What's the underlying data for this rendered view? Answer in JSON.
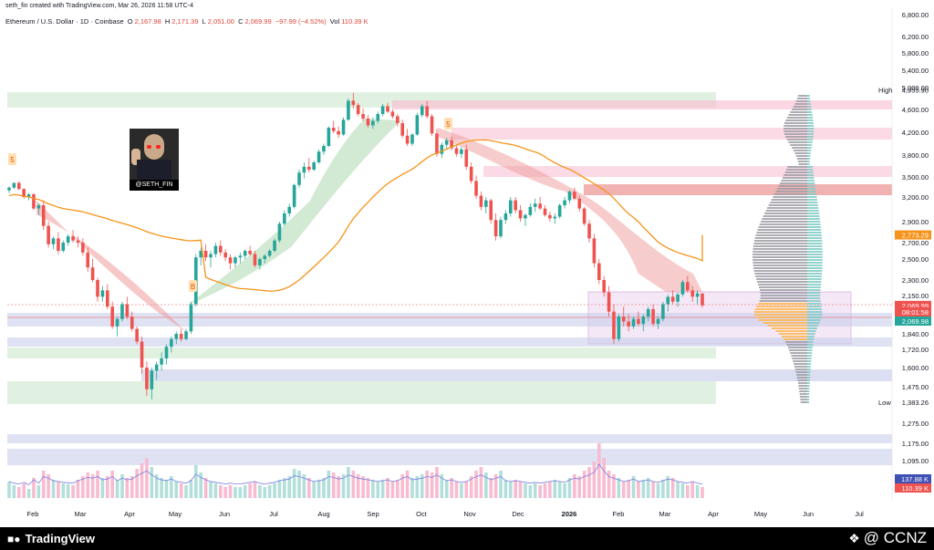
{
  "attribution": "seth_fin created with TradingView.com, Mar 26, 2026 11:58 UTC-4",
  "header": {
    "symbol": "Ethereum / U.S. Dollar · 1D · Coinbase",
    "o_label": "O",
    "o_value": "2,167.98",
    "h_label": "H",
    "h_value": "2,171.39",
    "l_label": "L",
    "l_value": "2,051.00",
    "c_label": "C",
    "c_value": "2,069.99",
    "change": "−97.99 (−4.52%)",
    "vol_label": "Vol",
    "vol_value": "110.39 K"
  },
  "avatar_caption": "@SETH_FIN",
  "footer": {
    "logo_text": "TradingView",
    "watermark": "@ CCNZ"
  },
  "colors": {
    "up": "#26a69a",
    "down": "#ef5350",
    "ma": "#f7931a",
    "up_volume": "#26a69a",
    "volume_line": "#7b7fe0"
  },
  "icons": {
    "tradingview": "tv-logo-icon",
    "ccnz": "ccnz-logo-icon"
  },
  "chart_data": {
    "type": "candlestick",
    "x_axis": [
      "Feb",
      "Mar",
      "Apr",
      "May",
      "Jun",
      "Jul",
      "Aug",
      "Sep",
      "Oct",
      "Nov",
      "Dec",
      "2026",
      "Feb",
      "Mar",
      "Apr",
      "May",
      "Jun",
      "Jul"
    ],
    "y_ticks": [
      "6,800.00",
      "6,200.00",
      "5,800.00",
      "5,400.00",
      "5,000.00",
      "4,600.00",
      "4,200.00",
      "3,800.00",
      "3,500.00",
      "3,200.00",
      "2,900.00",
      "2,700.00",
      "2,500.00",
      "2,300.00",
      "2,150.00",
      "1,840.00",
      "1,720.00",
      "1,600.00",
      "1,475.00",
      "1,275.00",
      "1,175.00",
      "1,095.00"
    ],
    "y_tick_values": [
      6800,
      6200,
      5800,
      5400,
      5000,
      4600,
      4200,
      3800,
      3500,
      3200,
      2900,
      2700,
      2500,
      2300,
      2150,
      1840,
      1720,
      1600,
      1475,
      1275,
      1175,
      1095
    ],
    "price_labels": [
      {
        "text": "High",
        "value": "4,955.90",
        "price": 4955.9
      },
      {
        "text": "",
        "value": "2,773.29",
        "price": 2773.29,
        "kind": "ma"
      },
      {
        "text": "",
        "value": "2,069.99",
        "price": 2069.99,
        "kind": "last"
      },
      {
        "text": "",
        "value": "08:01:58",
        "price": 2020,
        "kind": "countdown"
      },
      {
        "text": "",
        "value": "2,069.98",
        "price": 1960,
        "kind": "green"
      },
      {
        "text": "Low",
        "value": "1,383.26",
        "price": 1383.26
      }
    ],
    "volume_labels": [
      "137.88 K",
      "110.39 K"
    ],
    "annotations": [
      "5",
      "B",
      "5"
    ],
    "candles": [
      [
        3300,
        3360,
        3260,
        3340
      ],
      [
        3340,
        3420,
        3320,
        3410
      ],
      [
        3410,
        3440,
        3300,
        3320
      ],
      [
        3320,
        3330,
        3180,
        3200
      ],
      [
        3200,
        3260,
        3160,
        3240
      ],
      [
        3240,
        3260,
        3040,
        3060
      ],
      [
        3060,
        3120,
        2980,
        3100
      ],
      [
        3100,
        3160,
        2820,
        2860
      ],
      [
        2860,
        2900,
        2640,
        2680
      ],
      [
        2680,
        2760,
        2620,
        2740
      ],
      [
        2740,
        2800,
        2560,
        2600
      ],
      [
        2600,
        2720,
        2580,
        2700
      ],
      [
        2700,
        2780,
        2660,
        2760
      ],
      [
        2760,
        2820,
        2700,
        2720
      ],
      [
        2720,
        2760,
        2640,
        2700
      ],
      [
        2700,
        2740,
        2540,
        2580
      ],
      [
        2580,
        2640,
        2380,
        2420
      ],
      [
        2420,
        2500,
        2280,
        2300
      ],
      [
        2300,
        2320,
        2100,
        2140
      ],
      [
        2140,
        2240,
        2100,
        2200
      ],
      [
        2200,
        2260,
        2040,
        2060
      ],
      [
        2060,
        2100,
        1880,
        1900
      ],
      [
        1900,
        1980,
        1820,
        1960
      ],
      [
        1960,
        2100,
        1940,
        2080
      ],
      [
        2080,
        2140,
        1960,
        1980
      ],
      [
        1980,
        2020,
        1860,
        1880
      ],
      [
        1880,
        1900,
        1760,
        1780
      ],
      [
        1780,
        1820,
        1560,
        1600
      ],
      [
        1600,
        1640,
        1420,
        1460
      ],
      [
        1460,
        1600,
        1400,
        1580
      ],
      [
        1580,
        1640,
        1520,
        1620
      ],
      [
        1620,
        1700,
        1580,
        1660
      ],
      [
        1660,
        1760,
        1620,
        1740
      ],
      [
        1740,
        1820,
        1700,
        1800
      ],
      [
        1800,
        1860,
        1760,
        1840
      ],
      [
        1840,
        1880,
        1780,
        1800
      ],
      [
        1800,
        1880,
        1790,
        1860
      ],
      [
        1860,
        2100,
        1840,
        2080
      ],
      [
        2080,
        2560,
        2060,
        2520
      ],
      [
        2520,
        2640,
        2440,
        2600
      ],
      [
        2600,
        2680,
        2480,
        2520
      ],
      [
        2520,
        2600,
        2420,
        2560
      ],
      [
        2560,
        2700,
        2520,
        2660
      ],
      [
        2660,
        2720,
        2540,
        2580
      ],
      [
        2580,
        2620,
        2480,
        2520
      ],
      [
        2520,
        2560,
        2400,
        2460
      ],
      [
        2460,
        2540,
        2420,
        2520
      ],
      [
        2520,
        2580,
        2460,
        2540
      ],
      [
        2540,
        2620,
        2500,
        2600
      ],
      [
        2600,
        2660,
        2540,
        2560
      ],
      [
        2560,
        2600,
        2420,
        2440
      ],
      [
        2440,
        2520,
        2400,
        2500
      ],
      [
        2500,
        2560,
        2460,
        2540
      ],
      [
        2540,
        2620,
        2520,
        2600
      ],
      [
        2600,
        2740,
        2580,
        2720
      ],
      [
        2720,
        2900,
        2700,
        2880
      ],
      [
        2880,
        3040,
        2860,
        3000
      ],
      [
        3000,
        3120,
        2960,
        3080
      ],
      [
        3080,
        3400,
        3060,
        3380
      ],
      [
        3380,
        3600,
        3340,
        3560
      ],
      [
        3560,
        3700,
        3480,
        3640
      ],
      [
        3640,
        3760,
        3560,
        3600
      ],
      [
        3600,
        3720,
        3580,
        3700
      ],
      [
        3700,
        3900,
        3680,
        3860
      ],
      [
        3860,
        4000,
        3800,
        3960
      ],
      [
        3960,
        4300,
        3940,
        4280
      ],
      [
        4280,
        4400,
        4180,
        4220
      ],
      [
        4220,
        4300,
        4100,
        4160
      ],
      [
        4160,
        4460,
        4140,
        4420
      ],
      [
        4420,
        4800,
        4400,
        4760
      ],
      [
        4760,
        4900,
        4620,
        4680
      ],
      [
        4680,
        4720,
        4480,
        4520
      ],
      [
        4520,
        4620,
        4400,
        4440
      ],
      [
        4440,
        4500,
        4280,
        4320
      ],
      [
        4320,
        4460,
        4260,
        4400
      ],
      [
        4400,
        4560,
        4360,
        4520
      ],
      [
        4520,
        4700,
        4480,
        4660
      ],
      [
        4660,
        4720,
        4540,
        4560
      ],
      [
        4560,
        4600,
        4440,
        4480
      ],
      [
        4480,
        4520,
        4300,
        4360
      ],
      [
        4360,
        4420,
        4100,
        4140
      ],
      [
        4140,
        4260,
        3960,
        4000
      ],
      [
        4000,
        4180,
        3960,
        4160
      ],
      [
        4160,
        4540,
        4140,
        4500
      ],
      [
        4500,
        4700,
        4460,
        4660
      ],
      [
        4660,
        4760,
        4440,
        4480
      ],
      [
        4480,
        4520,
        4140,
        4180
      ],
      [
        4180,
        4260,
        3780,
        3820
      ],
      [
        3820,
        4020,
        3760,
        3980
      ],
      [
        3980,
        4100,
        3900,
        4060
      ],
      [
        4060,
        4120,
        3880,
        3920
      ],
      [
        3920,
        3980,
        3780,
        3820
      ],
      [
        3820,
        3940,
        3760,
        3900
      ],
      [
        3900,
        3980,
        3600,
        3640
      ],
      [
        3640,
        3700,
        3400,
        3440
      ],
      [
        3440,
        3520,
        3180,
        3220
      ],
      [
        3220,
        3280,
        3040,
        3080
      ],
      [
        3080,
        3200,
        3000,
        3160
      ],
      [
        3160,
        3180,
        2880,
        2920
      ],
      [
        2920,
        3000,
        2720,
        2760
      ],
      [
        2760,
        2960,
        2740,
        2920
      ],
      [
        2920,
        3040,
        2880,
        3000
      ],
      [
        3000,
        3200,
        2960,
        3160
      ],
      [
        3160,
        3200,
        3000,
        3040
      ],
      [
        3040,
        3100,
        2900,
        2940
      ],
      [
        2940,
        3000,
        2860,
        2980
      ],
      [
        2980,
        3120,
        2960,
        3080
      ],
      [
        3080,
        3180,
        3020,
        3120
      ],
      [
        3120,
        3200,
        3040,
        3060
      ],
      [
        3060,
        3100,
        2960,
        2980
      ],
      [
        2980,
        3020,
        2900,
        2940
      ],
      [
        2940,
        3000,
        2880,
        2960
      ],
      [
        2960,
        3120,
        2940,
        3100
      ],
      [
        3100,
        3200,
        3060,
        3160
      ],
      [
        3160,
        3300,
        3120,
        3280
      ],
      [
        3280,
        3340,
        3160,
        3180
      ],
      [
        3180,
        3220,
        3020,
        3060
      ],
      [
        3060,
        3080,
        2860,
        2880
      ],
      [
        2880,
        2920,
        2700,
        2740
      ],
      [
        2740,
        2780,
        2420,
        2460
      ],
      [
        2460,
        2500,
        2260,
        2300
      ],
      [
        2300,
        2340,
        2140,
        2180
      ],
      [
        2180,
        2240,
        1980,
        2020
      ],
      [
        2020,
        2080,
        1760,
        1800
      ],
      [
        1800,
        2000,
        1780,
        1980
      ],
      [
        1980,
        2060,
        1900,
        1940
      ],
      [
        1940,
        2000,
        1860,
        1900
      ],
      [
        1900,
        1980,
        1880,
        1960
      ],
      [
        1960,
        2020,
        1900,
        1920
      ],
      [
        1920,
        2000,
        1860,
        1980
      ],
      [
        1980,
        2060,
        1940,
        2040
      ],
      [
        2040,
        2080,
        1900,
        1920
      ],
      [
        1920,
        1980,
        1880,
        1960
      ],
      [
        1960,
        2100,
        1940,
        2080
      ],
      [
        2080,
        2160,
        2020,
        2140
      ],
      [
        2140,
        2200,
        2080,
        2100
      ],
      [
        2100,
        2180,
        2060,
        2160
      ],
      [
        2160,
        2300,
        2140,
        2280
      ],
      [
        2280,
        2340,
        2180,
        2200
      ],
      [
        2200,
        2240,
        2100,
        2140
      ],
      [
        2140,
        2200,
        2080,
        2170
      ],
      [
        2170,
        2171,
        2051,
        2070
      ]
    ]
  }
}
